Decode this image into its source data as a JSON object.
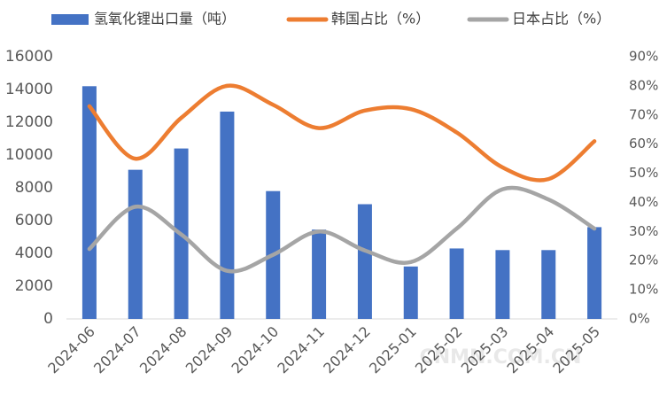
{
  "chart_data": {
    "type": "bar-line",
    "categories": [
      "2024-06",
      "2024-07",
      "2024-08",
      "2024-09",
      "2024-10",
      "2024-11",
      "2024-12",
      "2025-01",
      "2025-02",
      "2025-03",
      "2025-04",
      "2025-05"
    ],
    "series": [
      {
        "name": "氢氧化锂出口量（吨）",
        "type": "bar",
        "color": "#4472c4",
        "values": [
          14200,
          9100,
          10400,
          12650,
          7800,
          5450,
          7000,
          3200,
          4300,
          4200,
          4200,
          5600
        ]
      },
      {
        "name": "韩国占比（%）",
        "type": "line",
        "axis": "y2",
        "color": "#ed7d31",
        "values": [
          73,
          55,
          69,
          80,
          73.5,
          65.5,
          71.5,
          72,
          64,
          52,
          48,
          61
        ]
      },
      {
        "name": "日本占比（%）",
        "type": "line",
        "axis": "y2",
        "color": "#a5a5a5",
        "values": [
          24,
          38.5,
          29,
          16.5,
          22,
          30,
          23.5,
          19.5,
          31,
          44.5,
          41,
          31
        ]
      }
    ],
    "ylim": [
      0,
      16000
    ],
    "yticks": [
      0,
      2000,
      4000,
      6000,
      8000,
      10000,
      12000,
      14000,
      16000
    ],
    "y2lim": [
      0,
      90
    ],
    "y2ticks": [
      {
        "value": 0,
        "label": "0%"
      },
      {
        "value": 10,
        "label": "10%"
      },
      {
        "value": 20,
        "label": "20%"
      },
      {
        "value": 30,
        "label": "30%"
      },
      {
        "value": 40,
        "label": "40%"
      },
      {
        "value": 50,
        "label": "50%"
      },
      {
        "value": 60,
        "label": "60%"
      },
      {
        "value": 70,
        "label": "70%"
      },
      {
        "value": 80,
        "label": "80%"
      },
      {
        "value": 90,
        "label": "90%"
      }
    ],
    "legend": "top",
    "watermark": "CNMN.COM.CN"
  }
}
